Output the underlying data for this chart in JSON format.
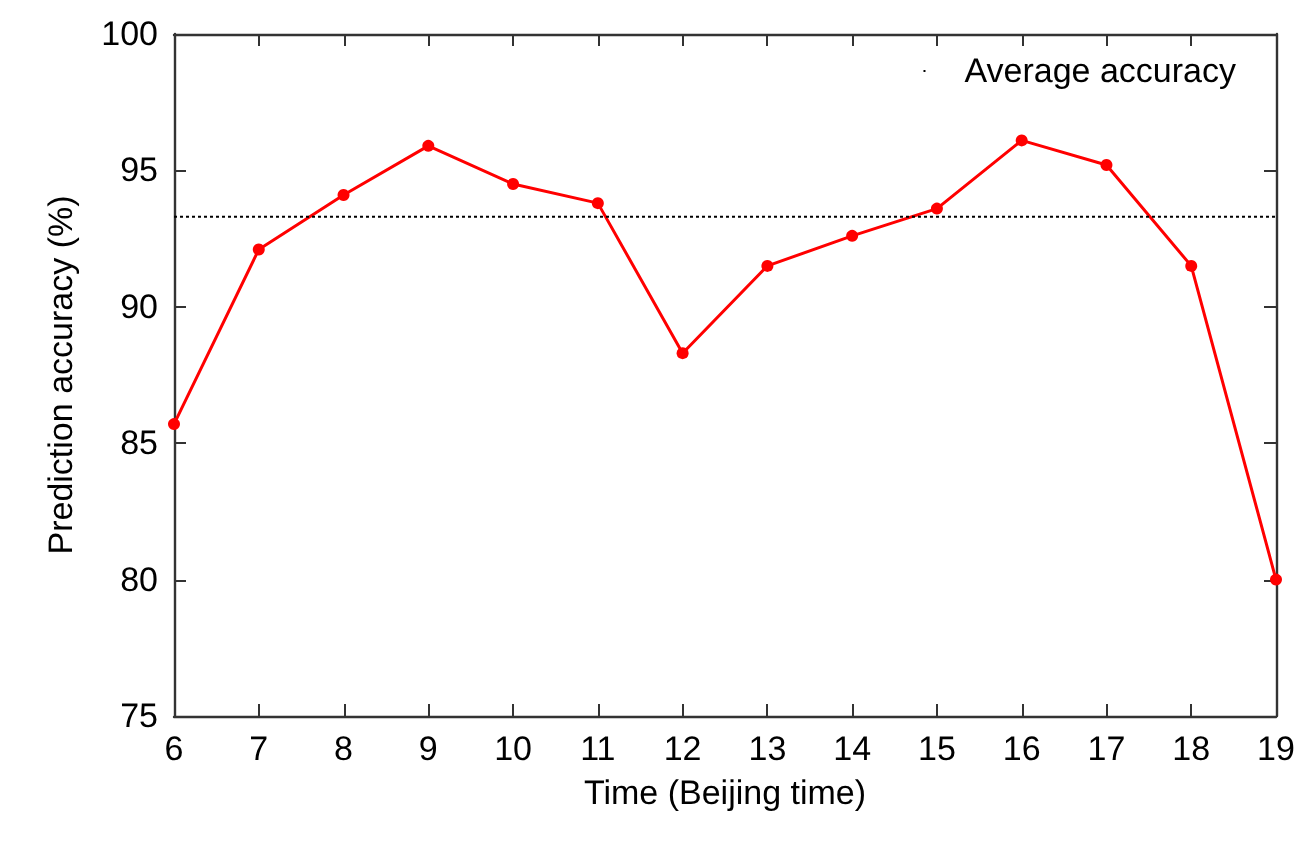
{
  "chart_data": {
    "type": "line",
    "xlabel": "Time (Beijing time)",
    "ylabel": "Prediction accuracy (%)",
    "x": [
      6,
      7,
      8,
      9,
      10,
      11,
      12,
      13,
      14,
      15,
      16,
      17,
      18,
      19
    ],
    "series": [
      {
        "color": "#ff0000",
        "values": [
          85.7,
          92.1,
          94.1,
          95.9,
          94.5,
          93.8,
          88.3,
          91.5,
          92.6,
          93.6,
          96.1,
          95.2,
          91.5,
          80.0
        ]
      }
    ],
    "xlim": [
      6,
      19
    ],
    "xticks": [
      6,
      7,
      8,
      9,
      10,
      11,
      12,
      13,
      14,
      15,
      16,
      17,
      18,
      19
    ],
    "ylim": [
      75,
      100
    ],
    "yticks": [
      75,
      80,
      85,
      90,
      95,
      100
    ],
    "ref_lines": [
      {
        "axis": "y",
        "value": 93.3,
        "label": "Average accuracy",
        "color": "#000000",
        "line_style": "dotted"
      }
    ],
    "legend": "top right",
    "grid": false,
    "marker": "circle",
    "line_style": "solid"
  }
}
